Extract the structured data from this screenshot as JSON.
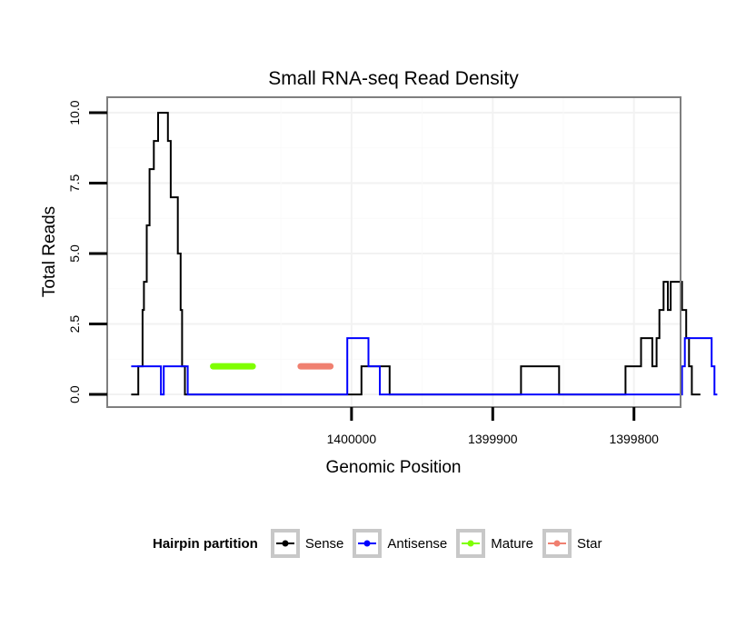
{
  "chart_data": {
    "type": "line",
    "title": "Small RNA-seq Read Density",
    "xlabel": "Genomic Position",
    "ylabel": "Total Reads",
    "xlim": [
      1400173,
      1399767
    ],
    "x_reversed": true,
    "ylim": [
      -0.45,
      10.55
    ],
    "x_ticks": [
      1400000,
      1399900,
      1399800
    ],
    "x_tick_labels": [
      "1400000",
      "1399900",
      "1399800"
    ],
    "y_ticks": [
      0,
      2.5,
      5,
      7.5,
      10
    ],
    "y_tick_labels": [
      "0.0",
      "2.5",
      "5.0",
      "7.5",
      "10.0"
    ],
    "grid": true,
    "legend": {
      "title": "Hairpin partition",
      "placement": "bottom",
      "entries": [
        "Sense",
        "Antisense",
        "Mature",
        "Star"
      ]
    },
    "series": [
      {
        "name": "Sense",
        "color": "#000000",
        "points": [
          [
            1400156,
            0
          ],
          [
            1400151,
            0
          ],
          [
            1400151,
            1
          ],
          [
            1400148,
            1
          ],
          [
            1400148,
            3
          ],
          [
            1400147,
            3
          ],
          [
            1400147,
            4
          ],
          [
            1400145,
            4
          ],
          [
            1400145,
            6
          ],
          [
            1400143,
            6
          ],
          [
            1400143,
            8
          ],
          [
            1400140,
            8
          ],
          [
            1400140,
            9
          ],
          [
            1400137,
            9
          ],
          [
            1400137,
            10
          ],
          [
            1400130,
            10
          ],
          [
            1400130,
            9
          ],
          [
            1400128,
            9
          ],
          [
            1400128,
            7
          ],
          [
            1400123,
            7
          ],
          [
            1400123,
            5
          ],
          [
            1400121,
            5
          ],
          [
            1400121,
            3
          ],
          [
            1400120,
            3
          ],
          [
            1400120,
            1
          ],
          [
            1400118,
            1
          ],
          [
            1400118,
            0
          ],
          [
            1400013,
            0
          ],
          [
            1400013,
            0
          ],
          [
            1399993,
            0
          ],
          [
            1399993,
            1
          ],
          [
            1399973,
            1
          ],
          [
            1399973,
            0
          ],
          [
            1399913,
            0
          ],
          [
            1399913,
            0
          ],
          [
            1399880,
            0
          ],
          [
            1399880,
            1
          ],
          [
            1399853,
            1
          ],
          [
            1399853,
            0
          ],
          [
            1399806,
            0
          ],
          [
            1399806,
            1
          ],
          [
            1399795,
            1
          ],
          [
            1399795,
            2
          ],
          [
            1399787,
            2
          ],
          [
            1399787,
            1
          ],
          [
            1399784,
            1
          ],
          [
            1399784,
            2
          ],
          [
            1399782,
            2
          ],
          [
            1399782,
            3
          ],
          [
            1399779,
            3
          ],
          [
            1399779,
            4
          ],
          [
            1399776,
            4
          ],
          [
            1399776,
            3
          ],
          [
            1399774,
            3
          ],
          [
            1399774,
            4
          ],
          [
            1399766,
            4
          ],
          [
            1399766,
            3
          ],
          [
            1399763,
            3
          ],
          [
            1399763,
            2
          ],
          [
            1399761,
            2
          ],
          [
            1399761,
            1
          ],
          [
            1399759,
            1
          ],
          [
            1399759,
            0
          ],
          [
            1399753,
            0
          ]
        ]
      },
      {
        "name": "Antisense",
        "color": "#0000ff",
        "points": [
          [
            1400156,
            1
          ],
          [
            1400135,
            1
          ],
          [
            1400135,
            0
          ],
          [
            1400133,
            0
          ],
          [
            1400133,
            1
          ],
          [
            1400116,
            1
          ],
          [
            1400116,
            0
          ],
          [
            1400003,
            0
          ],
          [
            1400003,
            2
          ],
          [
            1399988,
            2
          ],
          [
            1399988,
            1
          ],
          [
            1399980,
            1
          ],
          [
            1399980,
            0
          ],
          [
            1399766,
            0
          ],
          [
            1399766,
            1
          ],
          [
            1399764,
            1
          ],
          [
            1399764,
            2
          ],
          [
            1399745,
            2
          ],
          [
            1399745,
            1
          ],
          [
            1399743,
            1
          ],
          [
            1399743,
            0
          ],
          [
            1399741,
            0
          ]
        ]
      },
      {
        "name": "Mature",
        "color": "#7fff00",
        "points": [
          [
            1400098,
            1
          ],
          [
            1400070,
            1
          ]
        ]
      },
      {
        "name": "Star",
        "color": "#f08070",
        "points": [
          [
            1400036,
            1
          ],
          [
            1400015,
            1
          ]
        ]
      }
    ]
  }
}
